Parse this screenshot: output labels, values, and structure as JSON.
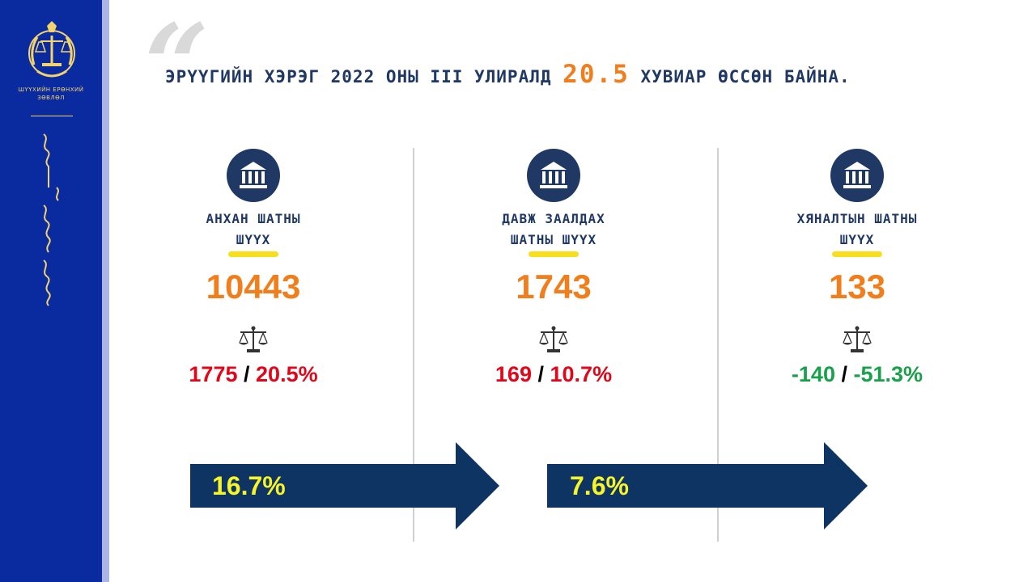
{
  "sidebar": {
    "council_name": "ШҮҮХИЙН ЕРӨНХИЙ ЗӨВЛӨЛ"
  },
  "header": {
    "title_prefix": "ЭРҮҮГИЙН ХЭРЭГ 2022 ОНЫ III УЛИРАЛД",
    "title_highlight": "20.5",
    "title_suffix": "ХУВИАР ӨССӨН БАЙНА."
  },
  "courts": [
    {
      "label_line1": "АНХАН ШАТНЫ",
      "label_line2": "ШҮҮХ",
      "count": "10443",
      "change_abs": "1775",
      "separator": "/",
      "change_pct": "20.5%",
      "trend": "increase",
      "trend_color": "#e1061a"
    },
    {
      "label_line1": "ДАВЖ ЗААЛДАХ",
      "label_line2": "ШАТНЫ ШҮҮХ",
      "count": "1743",
      "change_abs": "169",
      "separator": "/",
      "change_pct": "10.7%",
      "trend": "increase",
      "trend_color": "#e1061a"
    },
    {
      "label_line1": "ХЯНАЛТЫН ШАТНЫ",
      "label_line2": "ШҮҮХ",
      "count": "133",
      "change_abs": "-140",
      "separator": "/",
      "change_pct": "-51.3%",
      "trend": "decrease",
      "trend_color": "#19a04b"
    }
  ],
  "arrows": [
    {
      "label": "16.7%"
    },
    {
      "label": "7.6%"
    }
  ],
  "icons": {
    "court": "courthouse-icon",
    "scale": "scale-of-justice-icon",
    "emblem": "judicial-council-emblem",
    "quote": "quote-mark"
  },
  "colors": {
    "sidebar": "#0a2aa0",
    "navy": "#1f3864",
    "accent_orange": "#f07e1d",
    "increase_red": "#e1061a",
    "decrease_green": "#19a04b",
    "arrow_fill": "#0e3464",
    "arrow_text": "#f7f42a",
    "underline": "#f7df1e"
  }
}
